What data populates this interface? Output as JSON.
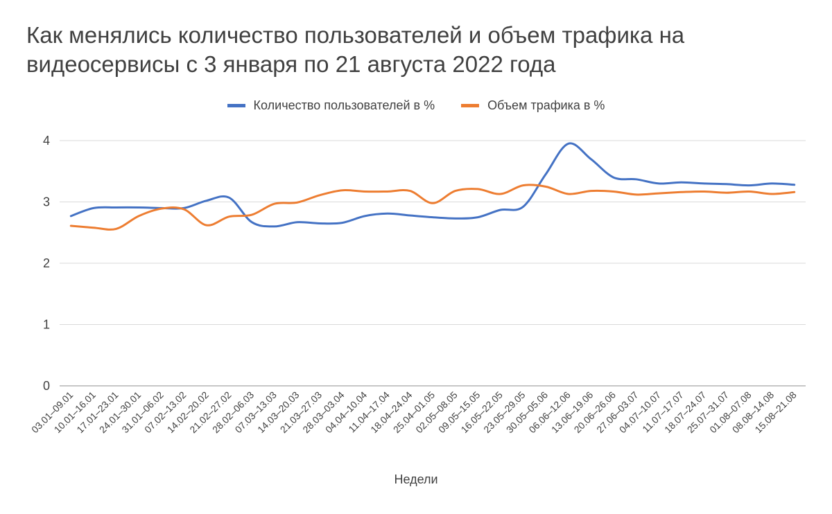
{
  "chart_data": {
    "type": "line",
    "title": "Как менялись количество пользователей и объем трафика на видеосервисы с 3 января по 21 августа 2022 года",
    "xlabel": "Недели",
    "ylabel": "",
    "ylim": [
      0,
      4
    ],
    "yticks": [
      0,
      1,
      2,
      3,
      4
    ],
    "grid": true,
    "legend_position": "top",
    "categories": [
      "03.01–09.01",
      "10.01–16.01",
      "17.01–23.01",
      "24.01–30.01",
      "31.01–06.02",
      "07.02–13.02",
      "14.02–20.02",
      "21.02–27.02",
      "28.02–06.03",
      "07.03–13.03",
      "14.03–20.03",
      "21.03–27.03",
      "28.03–03.04",
      "04.04–10.04",
      "11.04–17.04",
      "18.04–24.04",
      "25.04–01.05",
      "02.05–08.05",
      "09.05–15.05",
      "16.05–22.05",
      "23.05–29.05",
      "30.05–05.06",
      "06.06–12.06",
      "13.06–19.06",
      "20.06–26.06",
      "27.06–03.07",
      "04.07–10.07",
      "11.07–17.07",
      "18.07–24.07",
      "25.07–31.07",
      "01.08–07.08",
      "08.08–14.08",
      "15.08–21.08"
    ],
    "series": [
      {
        "name": "Количество пользователей в %",
        "color": "#4472c4",
        "values": [
          2.77,
          2.9,
          2.91,
          2.91,
          2.9,
          2.9,
          3.02,
          3.07,
          2.67,
          2.6,
          2.67,
          2.65,
          2.66,
          2.77,
          2.81,
          2.78,
          2.75,
          2.73,
          2.75,
          2.87,
          2.92,
          3.45,
          3.95,
          3.7,
          3.4,
          3.37,
          3.3,
          3.32,
          3.3,
          3.29,
          3.27,
          3.3,
          3.28
        ]
      },
      {
        "name": "Объем трафика в %",
        "color": "#ed7d31",
        "values": [
          2.61,
          2.58,
          2.56,
          2.77,
          2.89,
          2.88,
          2.62,
          2.76,
          2.79,
          2.97,
          2.99,
          3.11,
          3.19,
          3.17,
          3.17,
          3.18,
          2.98,
          3.18,
          3.21,
          3.13,
          3.27,
          3.25,
          3.13,
          3.18,
          3.17,
          3.12,
          3.14,
          3.16,
          3.17,
          3.15,
          3.17,
          3.13,
          3.16
        ]
      }
    ]
  }
}
